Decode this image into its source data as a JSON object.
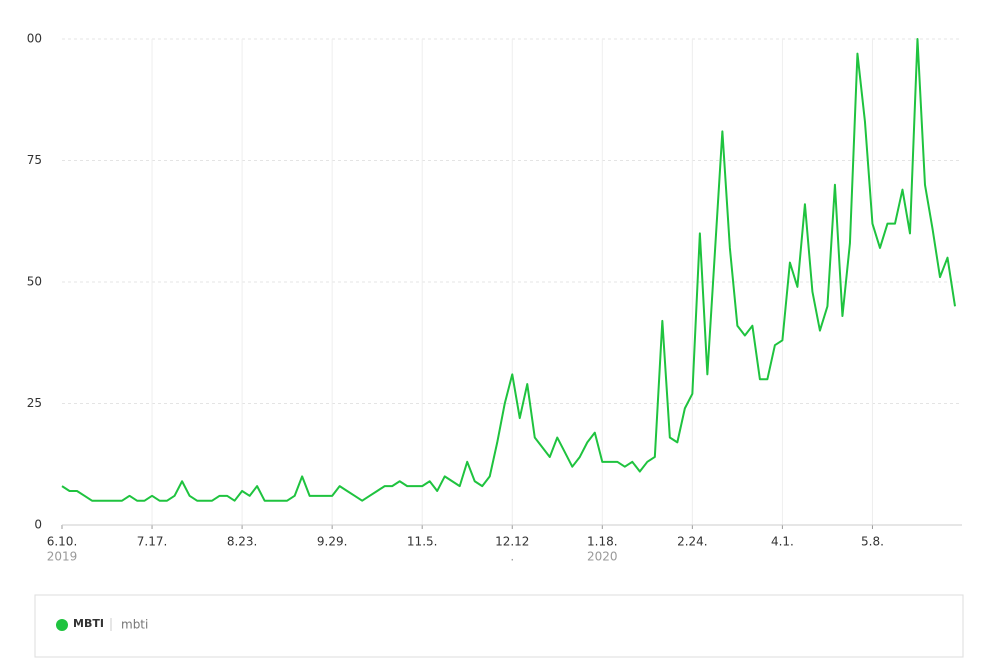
{
  "chart_data": {
    "type": "line",
    "categories": [
      "6.10.",
      null,
      null,
      null,
      null,
      null,
      null,
      null,
      null,
      null,
      null,
      null,
      "7.17.",
      null,
      null,
      null,
      null,
      null,
      null,
      null,
      null,
      null,
      null,
      null,
      "8.23.",
      null,
      null,
      null,
      null,
      null,
      null,
      null,
      null,
      null,
      null,
      null,
      "9.29.",
      null,
      null,
      null,
      null,
      null,
      null,
      null,
      null,
      null,
      null,
      null,
      "11.5.",
      null,
      null,
      null,
      null,
      null,
      null,
      null,
      null,
      null,
      null,
      null,
      "12.12",
      null,
      null,
      null,
      null,
      null,
      null,
      null,
      null,
      null,
      null,
      null,
      "1.18.",
      null,
      null,
      null,
      null,
      null,
      null,
      null,
      null,
      null,
      null,
      null,
      "2.24.",
      null,
      null,
      null,
      null,
      null,
      null,
      null,
      null,
      null,
      null,
      null,
      "4.1.",
      null,
      null,
      null,
      null,
      null,
      null,
      null,
      null,
      null,
      null,
      null,
      "5.8.",
      null,
      null,
      null,
      null,
      null,
      null,
      null,
      null,
      null,
      null,
      null
    ],
    "category_sublabels": [
      "2019",
      null,
      null,
      null,
      null,
      null,
      null,
      null,
      null,
      null,
      null,
      null,
      null,
      null,
      null,
      null,
      null,
      null,
      null,
      null,
      null,
      null,
      null,
      null,
      null,
      null,
      null,
      null,
      null,
      null,
      null,
      null,
      null,
      null,
      null,
      null,
      null,
      null,
      null,
      null,
      null,
      null,
      null,
      null,
      null,
      null,
      null,
      null,
      null,
      null,
      null,
      null,
      null,
      null,
      null,
      null,
      null,
      null,
      null,
      null,
      ".",
      null,
      null,
      null,
      null,
      null,
      null,
      null,
      null,
      null,
      null,
      null,
      "2020",
      null,
      null,
      null,
      null,
      null,
      null,
      null,
      null,
      null,
      null,
      null,
      null,
      null,
      null,
      null,
      null,
      null,
      null,
      null,
      null,
      null,
      null,
      null,
      null,
      null,
      null,
      null,
      null,
      null,
      null,
      null,
      null,
      null,
      null,
      null,
      null,
      null,
      null,
      null,
      null,
      null,
      null,
      null,
      null,
      null,
      null,
      null
    ],
    "series": [
      {
        "name": "MBTI",
        "keyword": "mbti",
        "color": "#1fc33f",
        "values": [
          8,
          7,
          7,
          6,
          5,
          5,
          5,
          5,
          5,
          6,
          5,
          5,
          6,
          5,
          5,
          6,
          9,
          6,
          5,
          5,
          5,
          6,
          6,
          5,
          7,
          6,
          8,
          5,
          5,
          5,
          5,
          6,
          10,
          6,
          6,
          6,
          6,
          8,
          7,
          6,
          5,
          6,
          7,
          8,
          8,
          9,
          8,
          8,
          8,
          9,
          7,
          10,
          9,
          8,
          13,
          9,
          8,
          10,
          17,
          25,
          31,
          22,
          29,
          18,
          16,
          14,
          18,
          15,
          12,
          14,
          17,
          19,
          13,
          13,
          13,
          12,
          13,
          11,
          13,
          14,
          42,
          18,
          17,
          24,
          27,
          60,
          31,
          56,
          81,
          57,
          41,
          39,
          41,
          30,
          30,
          37,
          38,
          54,
          49,
          66,
          48,
          40,
          45,
          70,
          43,
          58,
          97,
          83,
          62,
          57,
          62,
          62,
          69,
          60,
          100,
          70,
          61,
          51,
          55,
          45
        ]
      }
    ],
    "ylim": [
      0,
      100
    ],
    "yticks": [
      0,
      25,
      50,
      75,
      {
        "value": 100,
        "label": "00"
      }
    ],
    "grid": true
  }
}
